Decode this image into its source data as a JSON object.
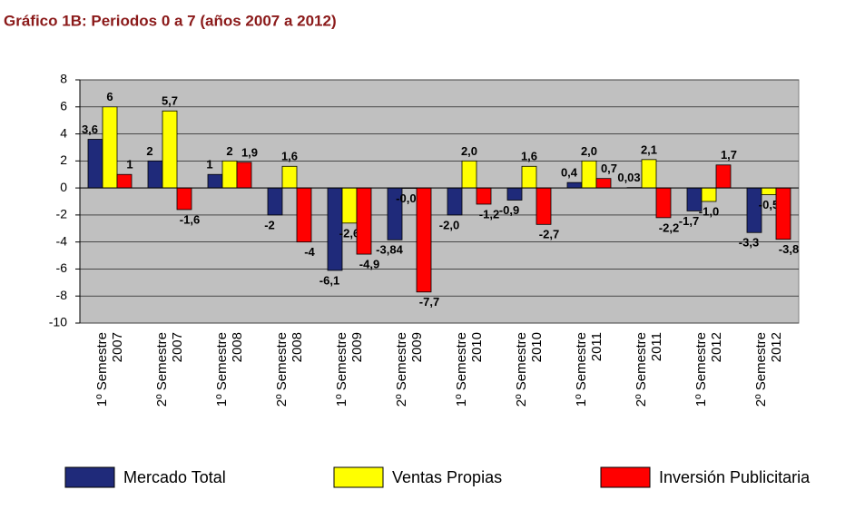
{
  "chart_data": {
    "type": "bar",
    "title": "Gráfico 1B: Periodos 0 a 7 (años 2007 a 2012)",
    "categories": [
      "1º Semestre 2007",
      "2º Semestre 2007",
      "1º Semestre 2008",
      "2º Semestre 2008",
      "1º Semestre 2009",
      "2º Semestre 2009",
      "1º Semestre 2010",
      "2º Semestre 2010",
      "1º Semestre 2011",
      "2º Semestre 2011",
      "1º Semestre 2012",
      "2º Semestre 2012"
    ],
    "series": [
      {
        "name": "Mercado Total",
        "color": "#1f2a7a",
        "values": [
          3.6,
          2,
          1,
          -2,
          -6.1,
          -3.84,
          -2.0,
          -0.9,
          0.4,
          0.03,
          -1.7,
          -3.3
        ],
        "value_labels": [
          "3,6",
          "2",
          "1",
          "-2",
          "-6,1",
          "-3,84",
          "-2,0",
          "-0,9",
          "0,4",
          "0,03",
          "-1,7",
          "-3,3"
        ]
      },
      {
        "name": "Ventas Propias",
        "color": "#ffff00",
        "values": [
          6,
          5.7,
          2,
          1.6,
          -2.6,
          -0.03,
          2.0,
          1.6,
          2.0,
          2.1,
          -1.0,
          -0.5
        ],
        "value_labels": [
          "6",
          "5,7",
          "2",
          "1,6",
          "-2,6",
          "-0,03",
          "2,0",
          "1,6",
          "2,0",
          "2,1",
          "-1,0",
          "-0,5"
        ]
      },
      {
        "name": "Inversión Publicitaria",
        "color": "#ff0000",
        "values": [
          1,
          -1.6,
          1.9,
          -4,
          -4.9,
          -7.7,
          -1.2,
          -2.7,
          0.7,
          -2.2,
          1.7,
          -3.8
        ],
        "value_labels": [
          "1",
          "-1,6",
          "1,9",
          "-4",
          "-4,9",
          "-7,7",
          "-1,2",
          "-2,7",
          "0,7",
          "-2,2",
          "1,7",
          "-3,8"
        ]
      }
    ],
    "ylim": [
      -10,
      8
    ],
    "yticks": [
      -10,
      -8,
      -6,
      -4,
      -2,
      0,
      2,
      4,
      6,
      8
    ],
    "grid": true,
    "legend": "bottom"
  }
}
